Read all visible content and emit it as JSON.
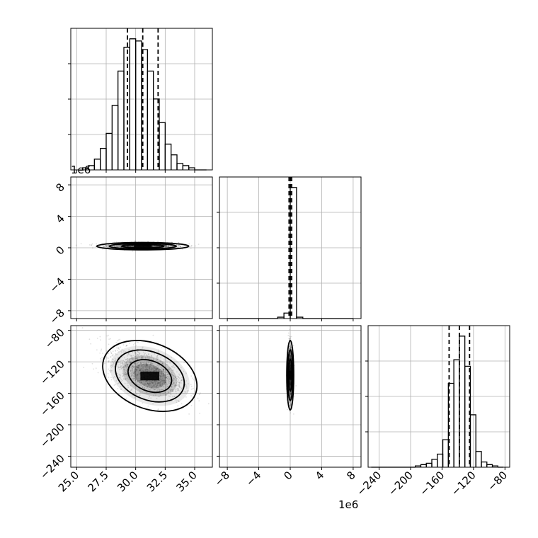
{
  "chart_data": {
    "type": "corner",
    "title": "",
    "colors": {
      "ink": "#000000",
      "grid": "#b0b0b0",
      "scatter": "#000000"
    },
    "grid": true,
    "parameters": [
      {
        "label": "",
        "range": [
          24.5,
          36.5
        ],
        "ticks": [
          25.0,
          27.5,
          30.0,
          32.5,
          35.0
        ],
        "tick_labels": [
          "25.0",
          "27.5",
          "30.0",
          "32.5",
          "35.0"
        ],
        "offset_text": ""
      },
      {
        "label": "",
        "range": [
          -9000000,
          9000000
        ],
        "ticks": [
          -8000000,
          -4000000,
          0,
          4000000,
          8000000
        ],
        "tick_labels": [
          "−8",
          "−4",
          "0",
          "4",
          "8"
        ],
        "offset_text": "1e6"
      },
      {
        "label": "",
        "range": [
          -254,
          -74
        ],
        "ticks": [
          -240,
          -200,
          -160,
          -120,
          -80
        ],
        "tick_labels": [
          "−240",
          "−200",
          "−160",
          "−120",
          "−80"
        ],
        "offset_text": ""
      }
    ],
    "histograms": [
      {
        "parameter": 0,
        "bin_edges": [
          25.5,
          26.0,
          26.5,
          27.0,
          27.5,
          28.0,
          28.5,
          29.0,
          29.5,
          30.0,
          30.5,
          31.0,
          31.5,
          32.0,
          32.5,
          33.0,
          33.5,
          34.0,
          34.5,
          35.0,
          35.5,
          36.0
        ],
        "counts": [
          1,
          2,
          5,
          10,
          17,
          30,
          46,
          57,
          61,
          60,
          56,
          46,
          33,
          22,
          12,
          7,
          3,
          2,
          1,
          0,
          0
        ],
        "quantiles": [
          29.3,
          30.6,
          31.9
        ]
      },
      {
        "parameter": 1,
        "bin_edges": [
          -8000000,
          -7200000,
          -6400000,
          -5600000,
          -4800000,
          -4000000,
          -3200000,
          -2400000,
          -1600000,
          -800000,
          0,
          800000,
          1600000,
          2400000,
          3200000,
          4000000,
          4800000,
          5600000,
          6400000,
          7200000,
          8000000
        ],
        "counts": [
          0,
          0,
          0,
          0,
          0,
          0,
          0,
          0,
          1,
          4,
          96,
          1,
          0,
          0,
          0,
          0,
          0,
          0,
          0,
          0
        ],
        "quantiles": [
          -150000,
          20000,
          180000
        ]
      },
      {
        "parameter": 2,
        "bin_edges": [
          -250,
          -243,
          -236,
          -229,
          -222,
          -215,
          -208,
          -201,
          -194,
          -187,
          -180,
          -173,
          -166,
          -159,
          -152,
          -145,
          -138,
          -131,
          -124,
          -117,
          -110,
          -103,
          -96,
          -89,
          -82
        ],
        "counts": [
          0,
          0,
          0,
          0,
          0,
          0,
          0,
          0,
          1,
          2,
          3,
          6,
          10,
          21,
          64,
          82,
          100,
          77,
          40,
          12,
          4,
          2,
          1,
          0
        ],
        "quantiles": [
          -151,
          -138,
          -125
        ]
      }
    ],
    "scatter_panels": [
      {
        "x": 0,
        "y": 1,
        "center": [
          30.6,
          300000
        ],
        "spread": [
          1.5,
          180000
        ],
        "correlation": 0.0,
        "density_peak": [
          30.6,
          200000
        ]
      },
      {
        "x": 0,
        "y": 2,
        "center": [
          30.9,
          -133
        ],
        "spread": [
          1.6,
          16
        ],
        "correlation": -0.5,
        "density_peak": [
          31.2,
          -138
        ]
      },
      {
        "x": 1,
        "y": 2,
        "center": [
          10000,
          -135
        ],
        "spread": [
          170000,
          17
        ],
        "correlation": 0.0,
        "density_peak": [
          0,
          -137
        ]
      }
    ]
  }
}
